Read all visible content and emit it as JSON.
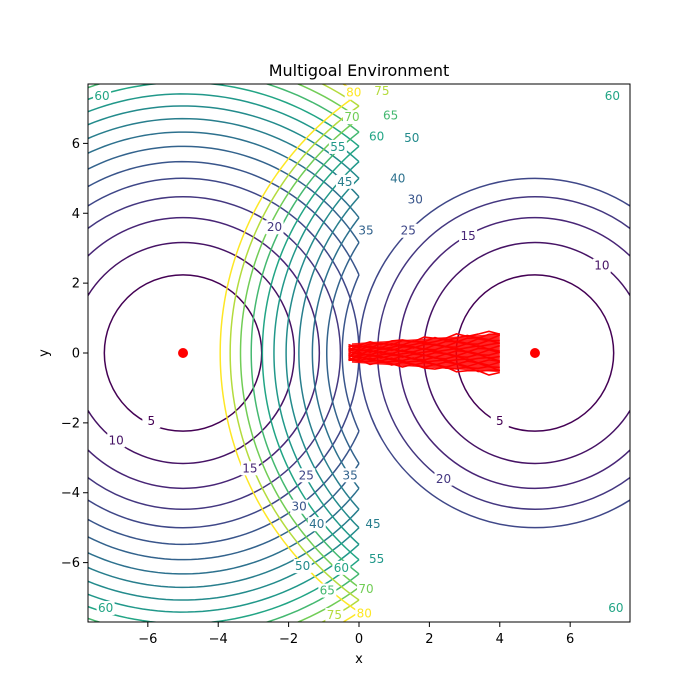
{
  "chart_data": {
    "type": "contour",
    "title": "Multigoal Environment",
    "xlabel": "x",
    "ylabel": "y",
    "xlim": [
      -7.7,
      7.7
    ],
    "ylim": [
      -7.7,
      7.7
    ],
    "x_ticks": [
      -6,
      -4,
      -2,
      0,
      2,
      4,
      6
    ],
    "y_ticks": [
      -6,
      -4,
      -2,
      0,
      2,
      4,
      6
    ],
    "x_tick_labels": [
      "−6",
      "−4",
      "−2",
      "0",
      "2",
      "4",
      "6"
    ],
    "y_tick_labels": [
      "−6",
      "−4",
      "−2",
      "0",
      "2",
      "4",
      "6"
    ],
    "grid": false,
    "cost_function": "min_goal ||p - g||^2",
    "contour_levels": [
      5,
      10,
      15,
      20,
      25,
      30,
      35,
      40,
      45,
      50,
      55,
      60,
      65,
      70,
      75,
      80
    ],
    "colormap": "viridis",
    "goals": [
      {
        "x": -5,
        "y": 0
      },
      {
        "x": 5,
        "y": 0
      }
    ],
    "goal_color": "#ff0000",
    "trajectories": {
      "color": "#ff0000",
      "x_start": -0.3,
      "x_end": 4.0,
      "y_spread_start": 0.35,
      "y_spread_end": 0.6,
      "count": 18
    },
    "contour_labels": [
      {
        "text": "5",
        "x": -5.9,
        "y": -1.95,
        "level": 5
      },
      {
        "text": "5",
        "x": 4.0,
        "y": -1.95,
        "level": 5
      },
      {
        "text": "10",
        "x": -6.9,
        "y": -2.5,
        "level": 10
      },
      {
        "text": "10",
        "x": 6.9,
        "y": 2.5,
        "level": 10
      },
      {
        "text": "15",
        "x": -3.1,
        "y": -3.3,
        "level": 15
      },
      {
        "text": "15",
        "x": 3.1,
        "y": 3.35,
        "level": 15
      },
      {
        "text": "20",
        "x": -2.4,
        "y": 3.6,
        "level": 20
      },
      {
        "text": "20",
        "x": 2.4,
        "y": -3.6,
        "level": 20
      },
      {
        "text": "25",
        "x": -1.5,
        "y": -3.5,
        "level": 25
      },
      {
        "text": "25",
        "x": 1.4,
        "y": 3.5,
        "level": 25
      },
      {
        "text": "30",
        "x": -1.7,
        "y": -4.4,
        "level": 30
      },
      {
        "text": "30",
        "x": 1.6,
        "y": 4.4,
        "level": 30
      },
      {
        "text": "35",
        "x": -0.25,
        "y": -3.5,
        "level": 35
      },
      {
        "text": "35",
        "x": 0.2,
        "y": 3.5,
        "level": 35
      },
      {
        "text": "40",
        "x": -1.2,
        "y": -4.9,
        "level": 40
      },
      {
        "text": "40",
        "x": 1.1,
        "y": 5.0,
        "level": 40
      },
      {
        "text": "45",
        "x": -0.4,
        "y": 4.9,
        "level": 45
      },
      {
        "text": "45",
        "x": 0.4,
        "y": -4.9,
        "level": 45
      },
      {
        "text": "50",
        "x": -1.6,
        "y": -6.1,
        "level": 50
      },
      {
        "text": "50",
        "x": 1.5,
        "y": 6.15,
        "level": 50
      },
      {
        "text": "55",
        "x": -0.6,
        "y": 5.9,
        "level": 55
      },
      {
        "text": "55",
        "x": 0.5,
        "y": -5.9,
        "level": 55
      },
      {
        "text": "60",
        "x": -7.3,
        "y": 7.35,
        "level": 60
      },
      {
        "text": "60",
        "x": 7.2,
        "y": 7.35,
        "level": 60
      },
      {
        "text": "60",
        "x": -7.2,
        "y": -7.3,
        "level": 60
      },
      {
        "text": "60",
        "x": 7.3,
        "y": -7.3,
        "level": 60
      },
      {
        "text": "60",
        "x": 0.5,
        "y": 6.2,
        "level": 60
      },
      {
        "text": "60",
        "x": -0.5,
        "y": -6.15,
        "level": 60
      },
      {
        "text": "65",
        "x": 0.9,
        "y": 6.8,
        "level": 65
      },
      {
        "text": "65",
        "x": -0.9,
        "y": -6.8,
        "level": 65
      },
      {
        "text": "70",
        "x": -0.2,
        "y": 6.75,
        "level": 70
      },
      {
        "text": "70",
        "x": 0.2,
        "y": -6.75,
        "level": 70
      },
      {
        "text": "75",
        "x": 0.65,
        "y": 7.5,
        "level": 75
      },
      {
        "text": "75",
        "x": -0.7,
        "y": -7.5,
        "level": 75
      },
      {
        "text": "80",
        "x": -0.15,
        "y": 7.45,
        "level": 80
      },
      {
        "text": "80",
        "x": 0.15,
        "y": -7.45,
        "level": 80
      }
    ]
  }
}
